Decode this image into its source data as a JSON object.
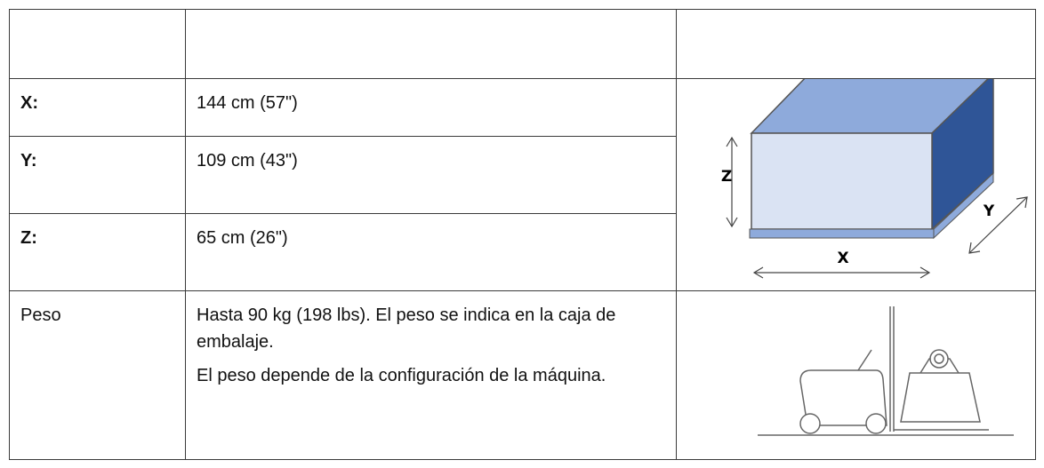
{
  "table": {
    "rows": [
      {
        "label": "X:",
        "value": "144 cm (57\")"
      },
      {
        "label": "Y:",
        "value": "109 cm (43\")"
      },
      {
        "label": "Z:",
        "value": "65 cm (26\")"
      },
      {
        "label": "Peso",
        "paragraphs": [
          "Hasta 90 kg (198 lbs). El peso se indica en la caja de embalaje.",
          "El peso depende de la configuración de la máquina."
        ]
      }
    ]
  },
  "diagram": {
    "axes": {
      "x": "X",
      "y": "Y",
      "z": "Z"
    }
  }
}
